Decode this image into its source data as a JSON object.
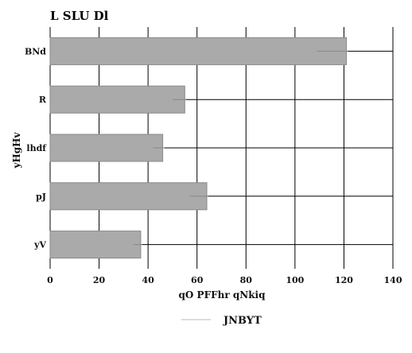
{
  "chart_data": {
    "type": "bar",
    "orientation": "horizontal",
    "title": "L SLU Dl",
    "xlabel": "qO PFFhr qNkiq",
    "ylabel": "yHgHv",
    "categories": [
      "BNd",
      "R",
      "lhdf",
      "pJ",
      "yV"
    ],
    "series": [
      {
        "name": "JNBYT",
        "values": [
          121,
          55,
          46,
          64,
          37
        ],
        "color": "#aaaaaa"
      }
    ],
    "error_markers": [
      109,
      50,
      42,
      57,
      34
    ],
    "xlim": [
      0,
      140
    ],
    "xticks": [
      0,
      20,
      40,
      60,
      80,
      100,
      120,
      140
    ],
    "grid": true,
    "legend_position": "bottom-center",
    "colors": {
      "bar": "#aaaaaa",
      "bar_edge": "#8a8a8a",
      "grid": "#000000",
      "legend_line": "#c8c8c8"
    }
  }
}
